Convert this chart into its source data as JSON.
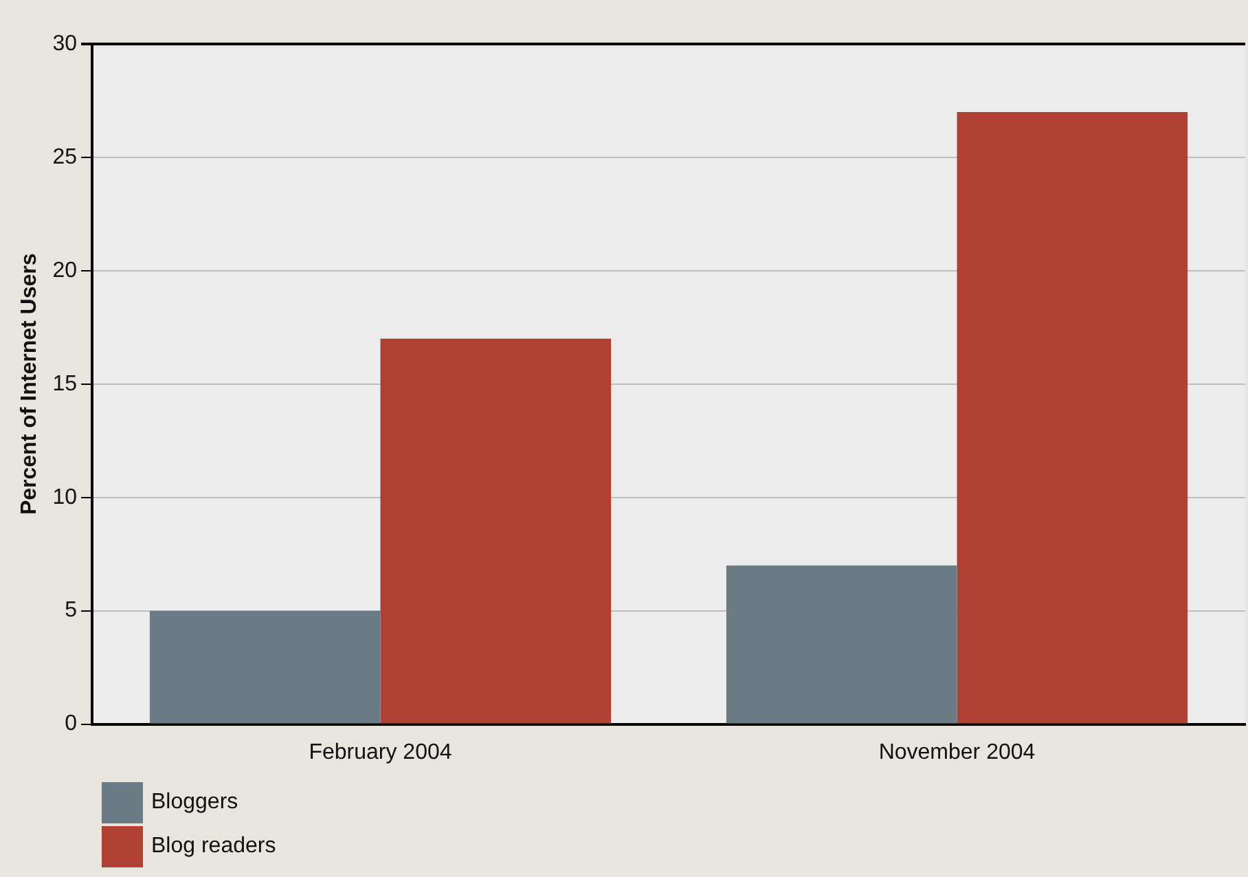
{
  "chart_data": {
    "type": "bar",
    "ylabel": "Percent of Internet Users",
    "categories": [
      "February 2004",
      "November 2004"
    ],
    "series": [
      {
        "name": "Bloggers",
        "color": "#6b7b84",
        "values": [
          5,
          7
        ]
      },
      {
        "name": "Blog readers",
        "color": "#b04032",
        "values": [
          17,
          27
        ]
      }
    ],
    "ylim": [
      0,
      30
    ],
    "yticks": [
      0,
      5,
      10,
      15,
      20,
      25,
      30
    ],
    "grid": "y",
    "legend": "bottom left"
  }
}
